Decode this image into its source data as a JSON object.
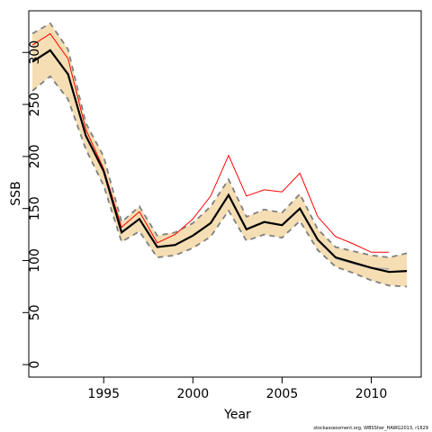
{
  "chart_data": {
    "type": "line",
    "xlabel": "Year",
    "ylabel": "SSB",
    "xlim": [
      1990.8,
      2012.8
    ],
    "ylim": [
      -12,
      340
    ],
    "x_ticks": [
      1995,
      2000,
      2005,
      2010
    ],
    "y_ticks": [
      0,
      50,
      100,
      150,
      200,
      250,
      300
    ],
    "grid": false,
    "legend": "none",
    "credit": "stockassessment.org, WBSSher_HAWG2013, r1629",
    "colors": {
      "band": "#f5deb3",
      "estimate": "#000000",
      "bounds": "#7f7f7f",
      "red_series": "#ff0000",
      "grey_series": "#b0b0b0"
    },
    "band": {
      "x": [
        1991,
        1992,
        1993,
        1994,
        1995,
        1996,
        1997,
        1998,
        1999,
        2000,
        2001,
        2002,
        2003,
        2004,
        2005,
        2006,
        2007,
        2008,
        2009,
        2010,
        2011,
        2012
      ],
      "lower": [
        263,
        277,
        255,
        207,
        172,
        118,
        128,
        103,
        105,
        112,
        123,
        148,
        119,
        125,
        122,
        138,
        110,
        94,
        88,
        81,
        76,
        75
      ],
      "upper": [
        318,
        328,
        303,
        232,
        200,
        137,
        152,
        124,
        127,
        136,
        152,
        178,
        142,
        149,
        146,
        164,
        130,
        113,
        109,
        105,
        103,
        107
      ]
    },
    "series": [
      {
        "x": [
          1991,
          1992,
          1993,
          1994,
          1995,
          1996,
          1997,
          1998,
          1999,
          2000,
          2001,
          2002,
          2003,
          2004,
          2005,
          2006,
          2007,
          2008,
          2009,
          2010,
          2011,
          2012
        ],
        "values": [
          291,
          302,
          279,
          220,
          186,
          127,
          140,
          113,
          115,
          124,
          136,
          163,
          130,
          137,
          134,
          150,
          120,
          103,
          98,
          93,
          89,
          90
        ]
      },
      {
        "x": [
          1991,
          1992,
          1993,
          1994,
          1995,
          1996,
          1997,
          1998,
          1999,
          2000,
          2001,
          2002,
          2003,
          2004,
          2005,
          2006,
          2007,
          2008,
          2009,
          2010,
          2011
        ],
        "values": [
          307,
          318,
          294,
          226,
          188,
          132,
          147,
          117,
          125,
          140,
          162,
          201,
          162,
          168,
          166,
          184,
          142,
          123,
          116,
          108,
          108
        ]
      },
      {
        "x": [
          2008,
          2009,
          2010,
          2011
        ],
        "values": [
          102,
          97,
          93,
          92
        ]
      }
    ]
  }
}
